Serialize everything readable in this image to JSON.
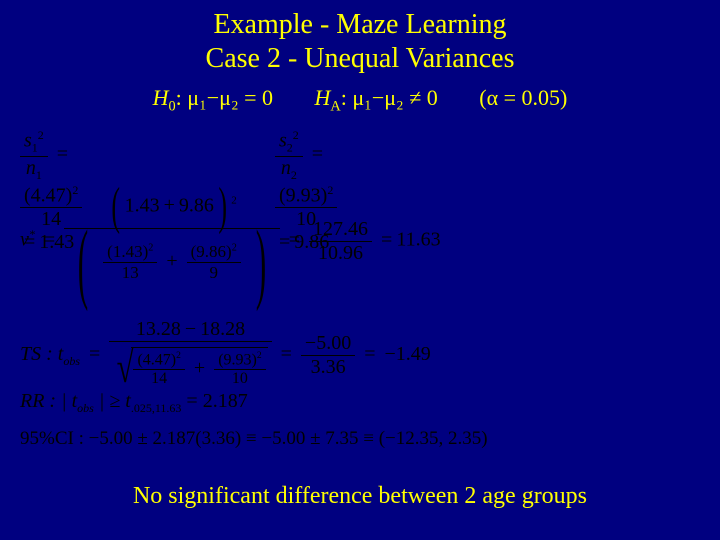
{
  "title1": "Example - Maze Learning",
  "title2": "Case 2 - Unequal Variances",
  "hyp": {
    "h0_lhs": "H",
    "h0_sub": "0",
    "h0_rhs": ": μ₁−μ₂ = 0",
    "ha_lhs": "H",
    "ha_sub": "A",
    "ha_rhs": ": μ₁−μ₂ ≠ 0",
    "alpha": "(α = 0.05)"
  },
  "s1": {
    "num": "s",
    "n1text": "n",
    "top": "(4.47)",
    "den": "14",
    "res": "1.43"
  },
  "s2": {
    "top": "(9.93)",
    "den": "10",
    "res": "9.86"
  },
  "nu": {
    "sym": "ν",
    "numL": "1.43",
    "numR": "9.86",
    "d1n": "(1.43)",
    "d1d": "13",
    "d2n": "(9.86)",
    "d2d": "9",
    "midnum": "127.46",
    "midden": "10.96",
    "res": "11.63"
  },
  "ts": {
    "label": "TS : t",
    "obs": "obs",
    "topL": "13.28",
    "topR": "18.28",
    "b1n": "(4.47)",
    "b1d": "14",
    "b2n": "(9.93)",
    "b2d": "10",
    "midtop": "−5.00",
    "midbot": "3.36",
    "res": "−1.49"
  },
  "rr": {
    "label": "RR : | t",
    "obs": "obs",
    "rhs": " | ≥ t",
    "sub": ".025,11.63",
    "val": " = 2.187"
  },
  "ci": {
    "label": "95%CI :",
    "body": "−5.00 ± 2.187(3.36) ≡ −5.00 ± 7.35 ≡ (−12.35, 2.35)"
  },
  "conclusion": "No significant difference between 2 age groups",
  "colors": {
    "bg": "#000080",
    "accent": "#ffff00",
    "math": "#000000"
  }
}
